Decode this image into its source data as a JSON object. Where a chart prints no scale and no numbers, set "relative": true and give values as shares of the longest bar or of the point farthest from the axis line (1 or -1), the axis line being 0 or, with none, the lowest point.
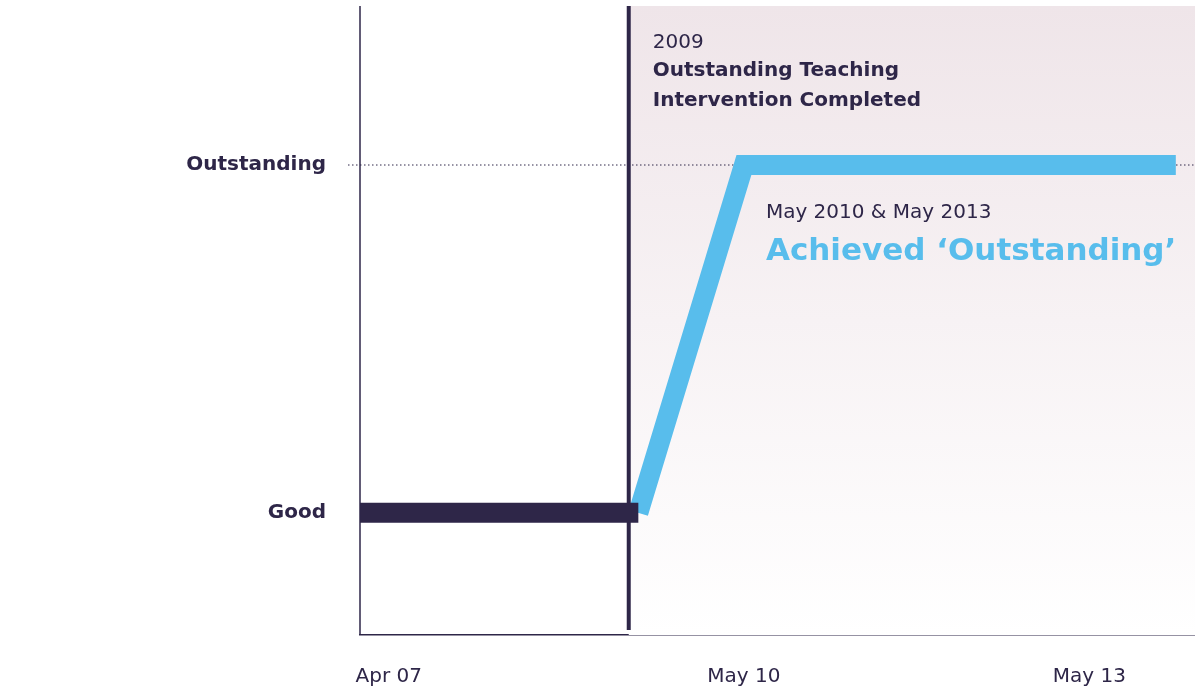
{
  "chart_data": {
    "type": "line",
    "series": [
      {
        "color": "#2e2648",
        "x": [
          "2007-01",
          "2009-06"
        ],
        "values": [
          0.26,
          0.26
        ]
      },
      {
        "color": "#58bdec",
        "x": [
          "2009-06",
          "2010-05",
          "2014-02"
        ],
        "values": [
          0.26,
          1,
          1
        ]
      }
    ],
    "xlim": [
      "2007-01",
      "2014-04"
    ],
    "xticks": [
      {
        "value": "2007-04",
        "label": "Apr 07"
      },
      {
        "value": "2010-05",
        "label": "May 10"
      },
      {
        "value": "2013-05",
        "label": "May 13"
      }
    ],
    "relative": true,
    "ref_lines": [
      {
        "axis": "x",
        "value": "2009-05",
        "label": "2009",
        "color": "#2e2648"
      },
      {
        "axis": "y",
        "value": 1,
        "label": "Outstanding",
        "line_style": "dotted",
        "color": "#2e2648"
      }
    ],
    "bands": [
      {
        "axis": "x",
        "from": "2009-05",
        "to": "2014-04",
        "color": "#efe5e9"
      }
    ],
    "annotations": [
      "Outstanding Teaching Intervention Completed",
      "Good",
      {
        "text": "May 2010 & May 2013",
        "x": "2010-05",
        "y": 1
      },
      {
        "text": "Achieved ‘Outstanding’",
        "x": "2010-05",
        "y": 1
      }
    ],
    "grid": false,
    "legend": false,
    "marker": "none",
    "line_style": "solid"
  }
}
